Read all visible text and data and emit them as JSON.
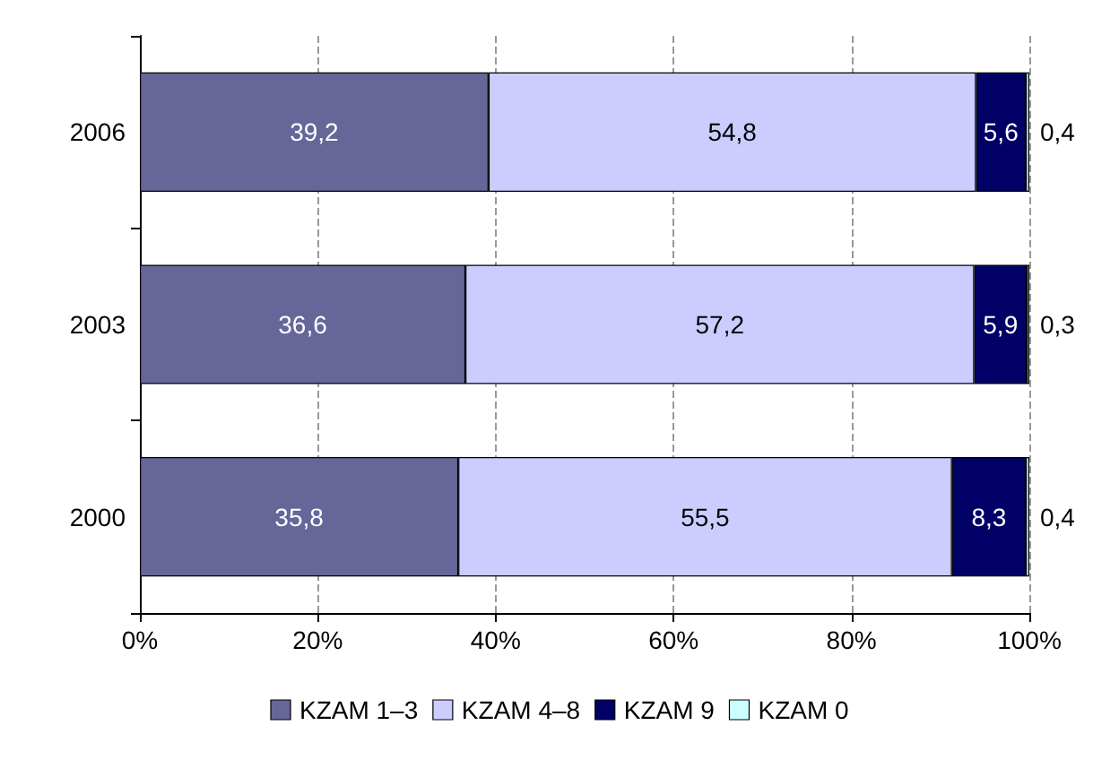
{
  "chart_data": {
    "type": "bar",
    "orientation": "horizontal",
    "stacked": true,
    "categories": [
      "2006",
      "2003",
      "2000"
    ],
    "series": [
      {
        "name": "KZAM 1–3",
        "color": "#666699",
        "values": [
          39.2,
          36.6,
          35.8
        ],
        "value_labels": [
          "39,2",
          "36,6",
          "35,8"
        ]
      },
      {
        "name": "KZAM 4–8",
        "color": "#ccccff",
        "values": [
          54.8,
          57.2,
          55.5
        ],
        "value_labels": [
          "54,8",
          "57,2",
          "55,5"
        ]
      },
      {
        "name": "KZAM 9",
        "color": "#000066",
        "values": [
          5.6,
          5.9,
          8.3
        ],
        "value_labels": [
          "5,6",
          "5,9",
          "8,3"
        ]
      },
      {
        "name": "KZAM 0",
        "color": "#ccffff",
        "values": [
          0.4,
          0.3,
          0.4
        ],
        "value_labels": [
          "0,4",
          "0,3",
          "0,4"
        ]
      }
    ],
    "xlim": [
      0,
      100
    ],
    "xticks": [
      {
        "value": 0,
        "label": "0%"
      },
      {
        "value": 20,
        "label": "20%"
      },
      {
        "value": 40,
        "label": "40%"
      },
      {
        "value": 60,
        "label": "60%"
      },
      {
        "value": 80,
        "label": "80%"
      },
      {
        "value": 100,
        "label": "100%"
      }
    ],
    "grid": "x",
    "legend": "bottom"
  }
}
